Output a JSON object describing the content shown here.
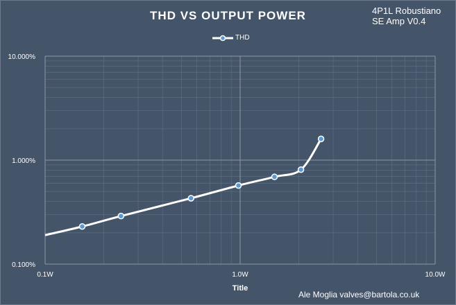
{
  "note_lines": [
    "4P1L Robustiano",
    "SE Amp V0.4"
  ],
  "credit": "Ale Moglia valves@bartola.co.uk",
  "colors": {
    "background": "#445469",
    "grid_major": "#8c98a8",
    "grid_minor": "#5f6d80",
    "line": "#ffffff",
    "marker_fill": "#5b9bd5"
  },
  "chart_data": {
    "type": "line",
    "title": "THD VS OUTPUT POWER",
    "xlabel": "Title",
    "ylabel": "",
    "x_scale": "log",
    "y_scale": "log",
    "xlim": [
      0.1,
      10
    ],
    "ylim": [
      0.001,
      0.1
    ],
    "x_ticks": [
      0.1,
      1,
      10
    ],
    "x_tick_labels": [
      "0.1W",
      "1.0W",
      "10.0W"
    ],
    "y_ticks": [
      0.001,
      0.01,
      0.1
    ],
    "y_tick_labels": [
      "0.100%",
      "1.000%",
      "10.000%"
    ],
    "grid": true,
    "legend": "top-center",
    "series": [
      {
        "name": "THD",
        "x": [
          0.1,
          0.155,
          0.245,
          0.56,
          0.98,
          1.5,
          2.05,
          2.6
        ],
        "y": [
          0.0019,
          0.0023,
          0.0029,
          0.0043,
          0.0057,
          0.0069,
          0.0081,
          0.016
        ],
        "markers": [
          false,
          true,
          true,
          true,
          true,
          true,
          true,
          true
        ]
      }
    ]
  }
}
